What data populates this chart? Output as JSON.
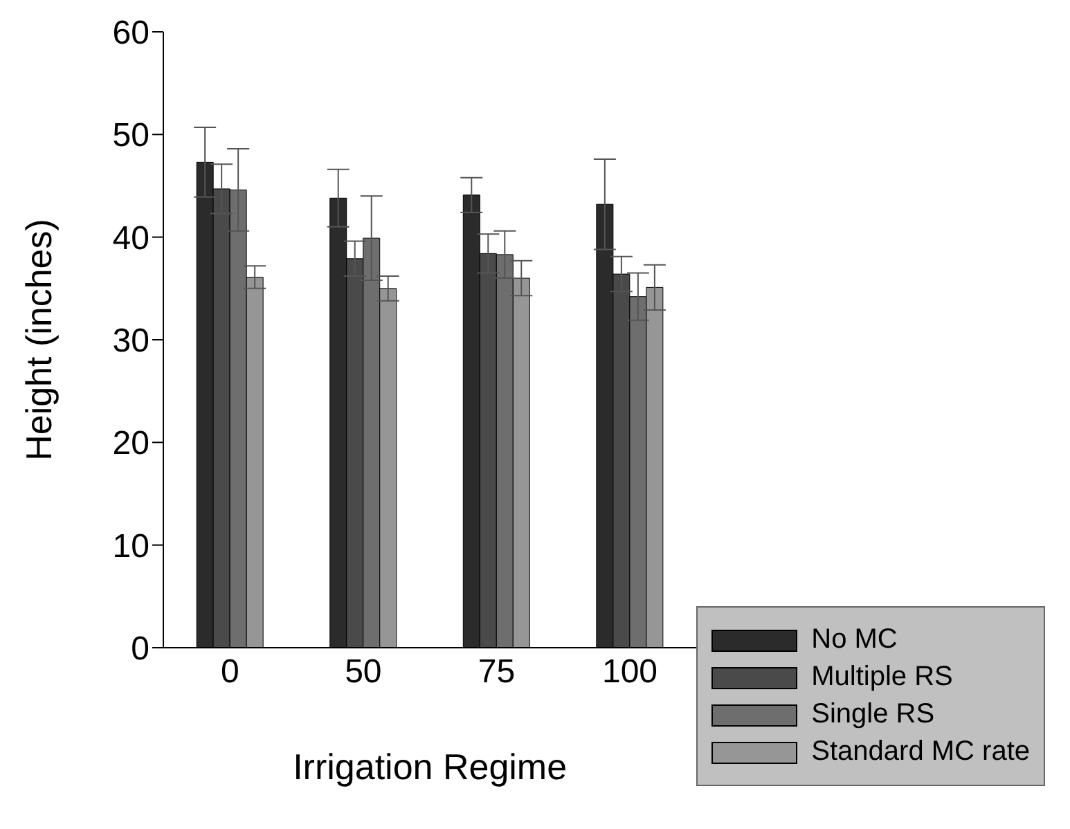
{
  "chart_data": {
    "type": "bar",
    "xlabel": "Irrigation Regime",
    "ylabel": "Height (inches)",
    "categories": [
      "0",
      "50",
      "75",
      "100"
    ],
    "series": [
      {
        "name": "No MC",
        "color": "#2b2b2b",
        "values": [
          47.3,
          43.8,
          44.1,
          43.2
        ],
        "errors": [
          3.4,
          2.8,
          1.7,
          4.4
        ]
      },
      {
        "name": "Multiple RS",
        "color": "#4a4a4a",
        "values": [
          44.7,
          37.9,
          38.4,
          36.4
        ],
        "errors": [
          2.4,
          1.7,
          1.9,
          1.7
        ]
      },
      {
        "name": "Single RS",
        "color": "#6e6e6e",
        "values": [
          44.6,
          39.9,
          38.3,
          34.2
        ],
        "errors": [
          4.0,
          4.1,
          2.3,
          2.3
        ]
      },
      {
        "name": "Standard MC rate",
        "color": "#969696",
        "values": [
          36.1,
          35.0,
          36.0,
          35.1
        ],
        "errors": [
          1.1,
          1.2,
          1.7,
          2.2
        ]
      }
    ],
    "ylim": [
      0,
      60
    ],
    "yticks": [
      0,
      10,
      20,
      30,
      40,
      50,
      60
    ],
    "grid": false,
    "legend": "bottom right"
  }
}
